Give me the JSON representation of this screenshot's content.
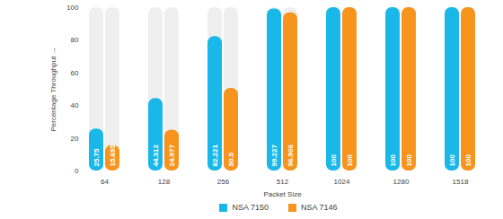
{
  "chart_data": {
    "type": "bar",
    "x_label": "Packet Size",
    "y_label": "Percentage Throughput",
    "categories": [
      "64",
      "128",
      "256",
      "512",
      "1024",
      "1280",
      "1518"
    ],
    "series": [
      {
        "name": "NSA 7150",
        "color": "#1ab8e8",
        "values": [
          25.75,
          44.312,
          82.221,
          99.227,
          100,
          100,
          100
        ]
      },
      {
        "name": "NSA 7146",
        "color": "#f7941d",
        "values": [
          15.695,
          24.977,
          50.5,
          96.906,
          100,
          100,
          100
        ]
      }
    ],
    "ylim": [
      0,
      100
    ],
    "yticks": [
      0,
      20,
      40,
      60,
      80,
      100
    ],
    "grid": false,
    "data_labels": true,
    "legend": "bottom"
  }
}
